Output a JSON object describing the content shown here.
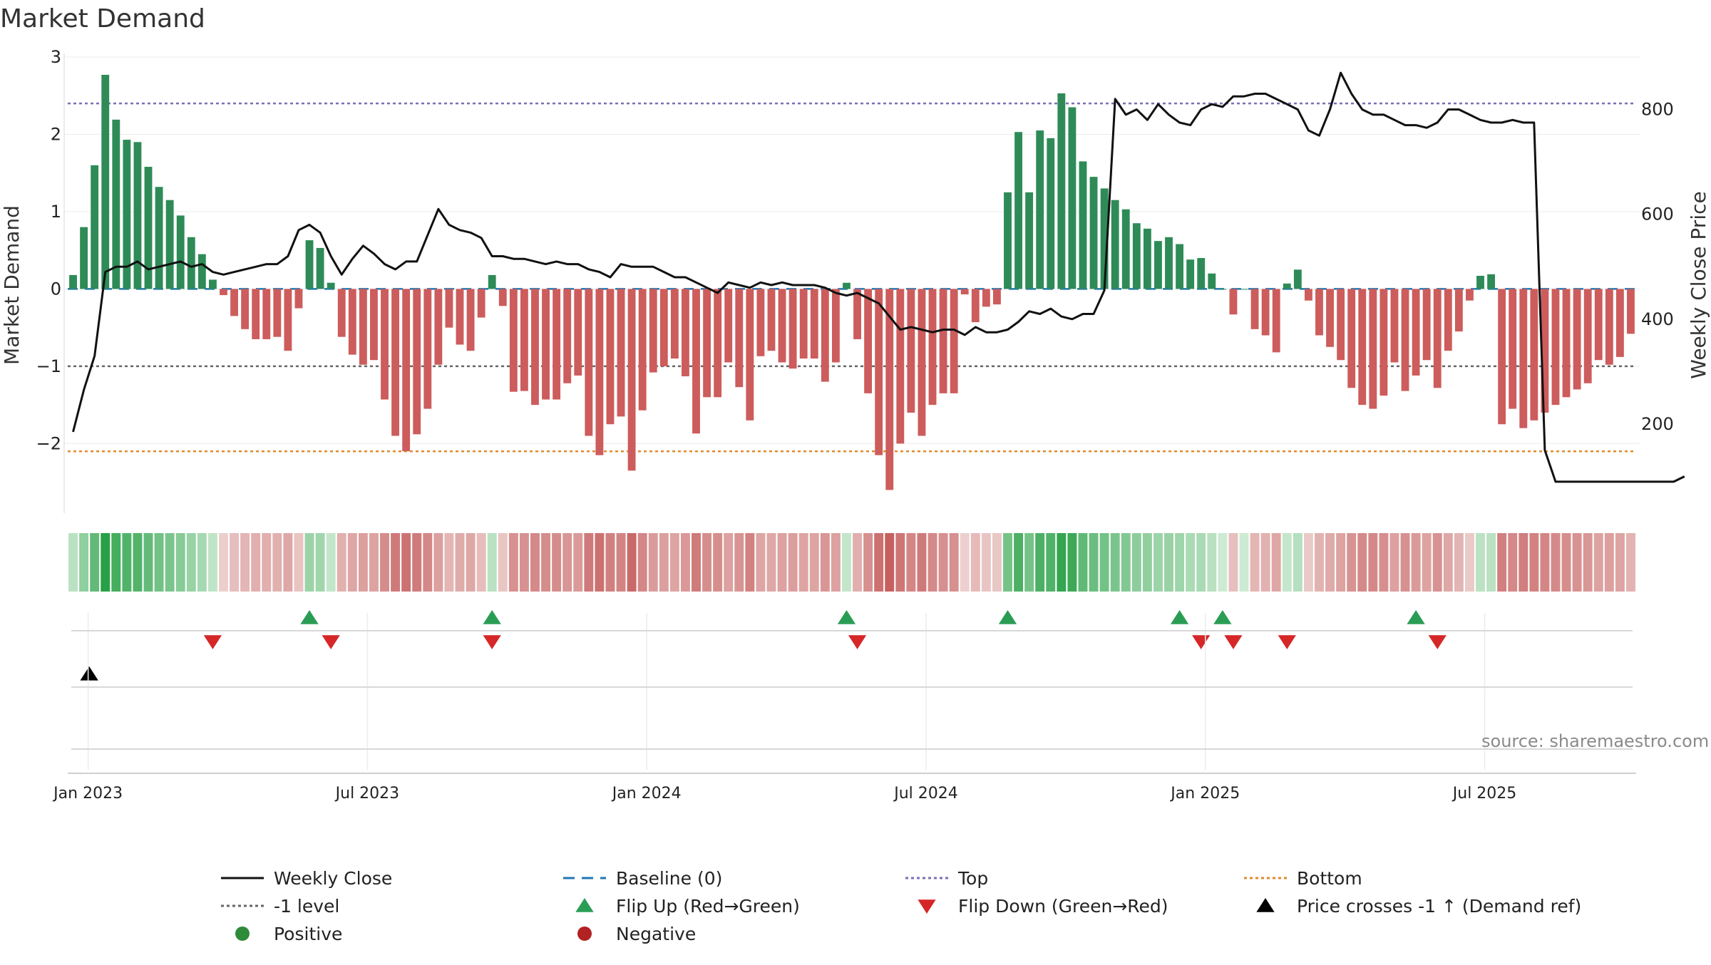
{
  "chart_data": {
    "type": "bar",
    "title": "Market Demand",
    "ylabel_left": "Market Demand",
    "ylabel_right": "Weekly Close Price",
    "ylim_left": [
      -2.9,
      3.0
    ],
    "ylim_right": [
      30,
      900
    ],
    "yticks_left": [
      -2,
      -1,
      0,
      1,
      2,
      3
    ],
    "yticks_right": [
      200,
      400,
      600,
      800
    ],
    "date_ticks": [
      "Jan 2023",
      "Jul 2023",
      "Jan 2024",
      "Jul 2024",
      "Jan 2025",
      "Jul 2025"
    ],
    "date_tick_weeks": [
      1.4,
      27.4,
      53.4,
      79.4,
      105.4,
      131.4
    ],
    "reference_lines": {
      "top": 2.4,
      "minus_one": -1.0,
      "bottom": -2.1,
      "baseline": 0
    },
    "demand": [
      0.18,
      0.8,
      1.6,
      2.77,
      2.19,
      1.93,
      1.9,
      1.58,
      1.32,
      1.15,
      0.95,
      0.67,
      0.45,
      0.12,
      -0.08,
      -0.35,
      -0.52,
      -0.65,
      -0.65,
      -0.62,
      -0.8,
      -0.25,
      0.63,
      0.53,
      0.08,
      -0.62,
      -0.85,
      -0.98,
      -0.92,
      -1.43,
      -1.9,
      -2.1,
      -1.88,
      -1.55,
      -0.98,
      -0.5,
      -0.72,
      -0.8,
      -0.37,
      0.18,
      -0.22,
      -1.33,
      -1.32,
      -1.5,
      -1.43,
      -1.43,
      -1.22,
      -1.12,
      -1.9,
      -2.15,
      -1.75,
      -1.65,
      -2.35,
      -1.57,
      -1.08,
      -1.0,
      -0.9,
      -1.13,
      -1.87,
      -1.4,
      -1.4,
      -0.95,
      -1.27,
      -1.7,
      -0.87,
      -0.8,
      -0.95,
      -1.03,
      -0.9,
      -0.9,
      -1.2,
      -0.95,
      0.08,
      -0.65,
      -1.35,
      -2.15,
      -2.6,
      -2.0,
      -1.6,
      -1.9,
      -1.5,
      -1.35,
      -1.35,
      -0.07,
      -0.43,
      -0.23,
      -0.2,
      1.25,
      2.03,
      1.25,
      2.05,
      1.95,
      2.53,
      2.35,
      1.65,
      1.45,
      1.3,
      1.15,
      1.03,
      0.85,
      0.78,
      0.62,
      0.67,
      0.58,
      0.38,
      0.4,
      0.2,
      0.0,
      -0.33,
      0.0,
      -0.52,
      -0.6,
      -0.82,
      0.07,
      0.25,
      -0.15,
      -0.6,
      -0.75,
      -0.92,
      -1.28,
      -1.5,
      -1.55,
      -1.38,
      -0.95,
      -1.32,
      -1.12,
      -0.92,
      -1.28,
      -0.8,
      -0.55,
      -0.15,
      0.17,
      0.19,
      -1.75,
      -1.55,
      -1.8,
      -1.7,
      -1.6,
      -1.5,
      -1.4,
      -1.3,
      -1.22,
      -0.92,
      -0.98,
      -0.88,
      -0.58
    ],
    "weekly_close": [
      185,
      265,
      330,
      490,
      500,
      500,
      510,
      495,
      500,
      505,
      510,
      500,
      505,
      490,
      485,
      490,
      495,
      500,
      505,
      505,
      520,
      570,
      580,
      565,
      520,
      485,
      515,
      540,
      525,
      505,
      495,
      510,
      510,
      560,
      610,
      580,
      570,
      565,
      555,
      520,
      520,
      515,
      515,
      510,
      505,
      510,
      505,
      505,
      495,
      490,
      480,
      505,
      500,
      500,
      500,
      490,
      480,
      480,
      470,
      460,
      450,
      470,
      465,
      460,
      470,
      465,
      470,
      465,
      465,
      465,
      460,
      450,
      445,
      450,
      440,
      430,
      405,
      380,
      385,
      380,
      375,
      380,
      380,
      370,
      385,
      375,
      375,
      380,
      395,
      415,
      410,
      420,
      405,
      400,
      410,
      410,
      455,
      820,
      790,
      800,
      780,
      810,
      790,
      775,
      770,
      800,
      810,
      805,
      825,
      825,
      830,
      830,
      820,
      810,
      800,
      760,
      750,
      800,
      870,
      830,
      800,
      790,
      790,
      780,
      770,
      770,
      765,
      775,
      800,
      800,
      790,
      780,
      775,
      775,
      780,
      775,
      775,
      150,
      90,
      90,
      90,
      90,
      90,
      90,
      90,
      90,
      90,
      90,
      90,
      90,
      100
    ],
    "flip_up_weeks": [
      22,
      39,
      72,
      87,
      103,
      107,
      125
    ],
    "flip_down_weeks": [
      13,
      24,
      39,
      73,
      105,
      108,
      113,
      127
    ],
    "price_cross_weeks": [
      1.5
    ],
    "legend": [
      {
        "label": "Weekly Close",
        "symbol": "line",
        "color": "#111111"
      },
      {
        "label": "Baseline (0)",
        "symbol": "dash",
        "color": "#1f77b4"
      },
      {
        "label": "Top",
        "symbol": "dot",
        "color": "#7b6fb5"
      },
      {
        "label": "Bottom",
        "symbol": "dot",
        "color": "#e08a2e"
      },
      {
        "label": "-1 level",
        "symbol": "dot",
        "color": "#666666"
      },
      {
        "label": "Flip Up (Red→Green)",
        "symbol": "triangle-up",
        "color": "#2a9d55"
      },
      {
        "label": "Flip Down (Green→Red)",
        "symbol": "triangle-down",
        "color": "#d62728"
      },
      {
        "label": "Price crosses -1 ↑ (Demand ref)",
        "symbol": "triangle-up",
        "color": "#000000"
      },
      {
        "label": "Positive",
        "symbol": "circle",
        "color": "#2e8b3a"
      },
      {
        "label": "Negative",
        "symbol": "circle",
        "color": "#b22222"
      }
    ],
    "colors": {
      "positive_bar": "#2e8b57",
      "negative_bar": "#cd5c5c",
      "price_line": "#111111",
      "top_line": "#7b6fb5",
      "bottom_line": "#e08a2e",
      "minus_one_line": "#666666",
      "baseline": "#1f77b4"
    }
  },
  "source": "source: sharemaestro.com"
}
